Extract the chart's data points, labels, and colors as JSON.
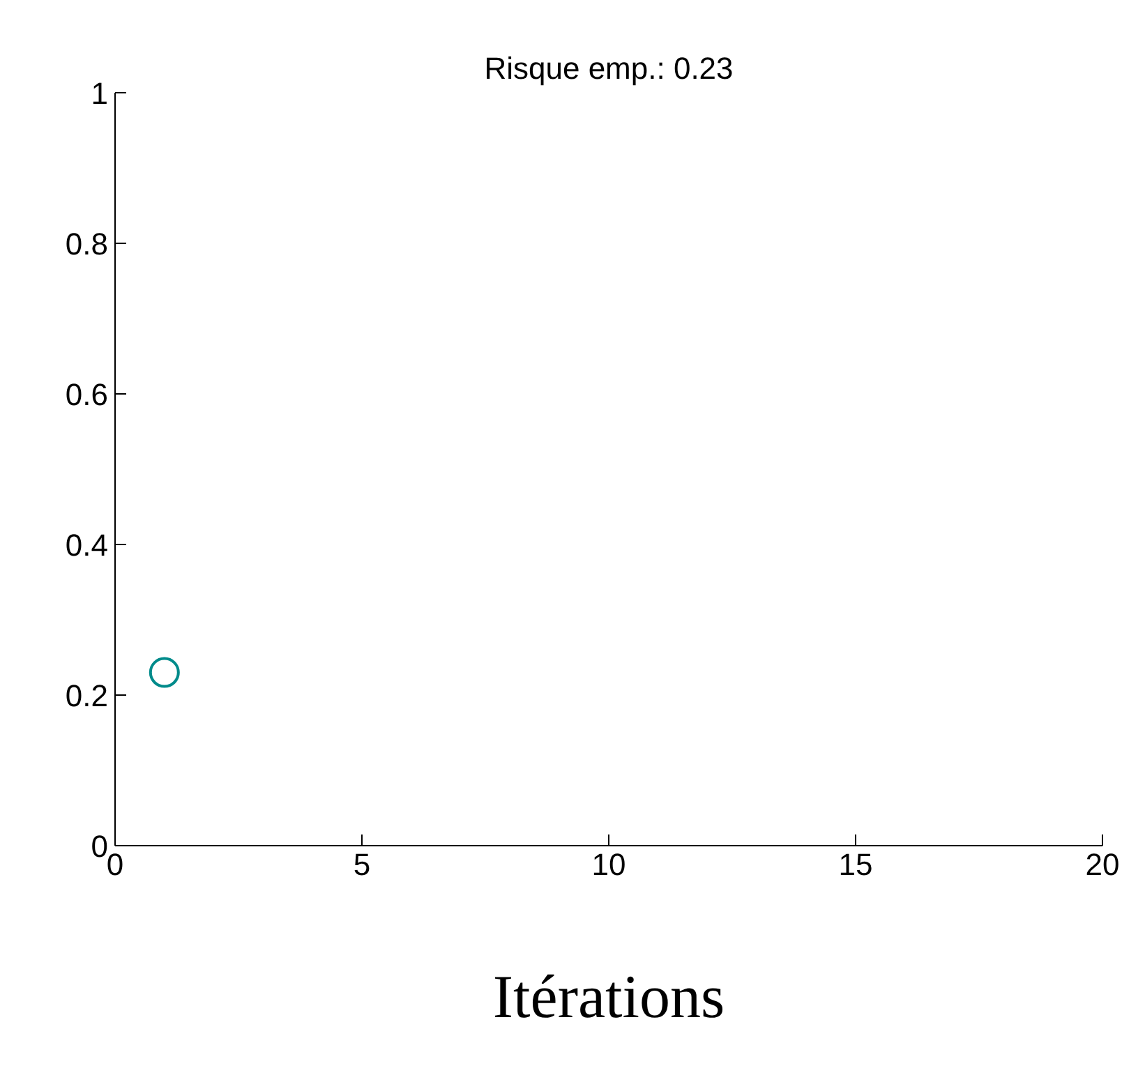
{
  "chart_data": {
    "type": "scatter",
    "title": "Risque emp.: 0.23",
    "xlabel": "Itérations",
    "x": [
      1
    ],
    "series": [
      {
        "color": "#008b8b",
        "values": [
          0.23
        ]
      }
    ],
    "xlim": [
      0,
      20
    ],
    "ylim": [
      0,
      1
    ],
    "xticks": [
      0,
      5,
      10,
      15,
      20
    ],
    "yticks": [
      0,
      0.2,
      0.4,
      0.6,
      0.8,
      1
    ],
    "grid": false,
    "marker": "circle"
  }
}
